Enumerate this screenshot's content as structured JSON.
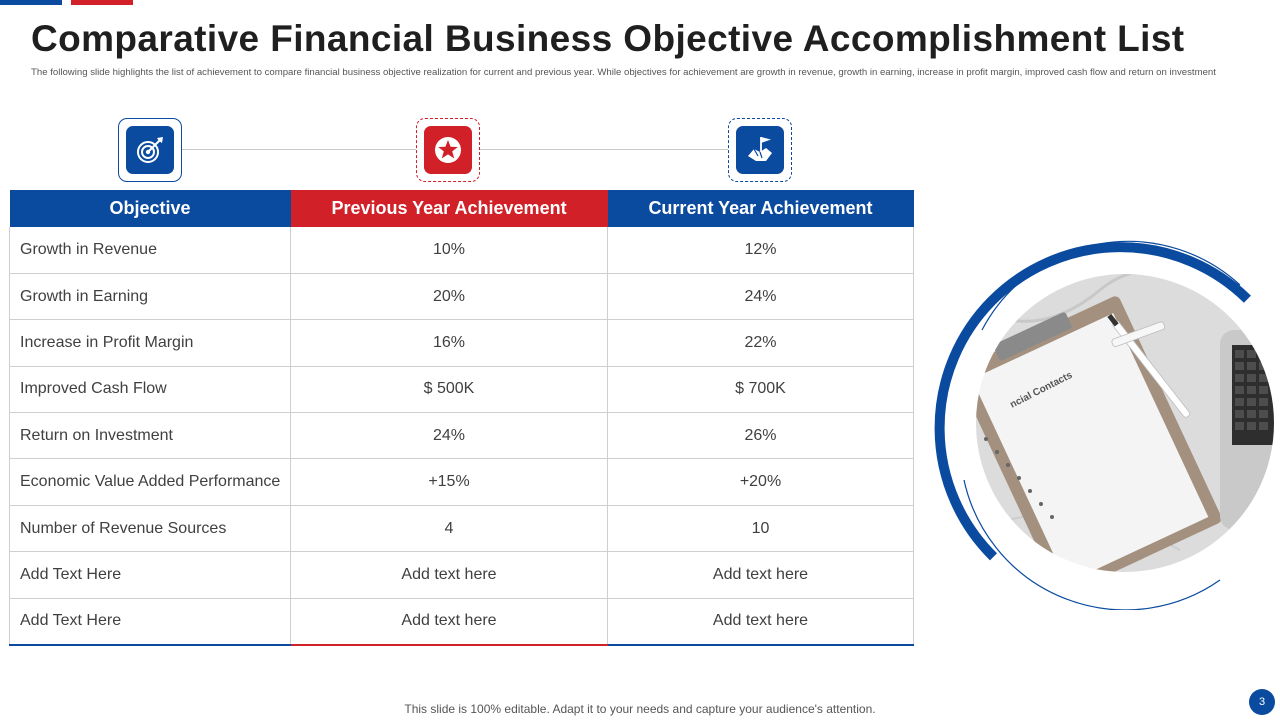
{
  "slide": {
    "title": "Comparative Financial Business Objective Accomplishment List",
    "subtitle": "The following slide highlights the list of achievement to compare financial business objective realization for current and previous year. While objectives for achievement are growth in revenue, growth in earning, increase in profit margin, improved cash flow and return on investment"
  },
  "icons": {
    "first": "target-icon",
    "second": "star-badge-icon",
    "third": "flag-handshake-icon"
  },
  "table": {
    "headers": {
      "objective": "Objective",
      "previous": "Previous Year Achievement",
      "current": "Current Year Achievement"
    },
    "rows": [
      {
        "objective": "Growth  in Revenue",
        "previous": "10%",
        "current": "12%"
      },
      {
        "objective": "Growth  in Earning",
        "previous": "20%",
        "current": "24%"
      },
      {
        "objective": "Increase  in Profit Margin",
        "previous": "16%",
        "current": "22%"
      },
      {
        "objective": "Improved  Cash Flow",
        "previous": "$ 500K",
        "current": "$ 700K"
      },
      {
        "objective": "Return  on Investment",
        "previous": "24%",
        "current": "26%"
      },
      {
        "objective": "Economic Value Added Performance",
        "previous": "+15%",
        "current": "+20%"
      },
      {
        "objective": "Number of Revenue  Sources",
        "previous": "4",
        "current": "10"
      },
      {
        "objective": "Add Text Here",
        "previous": "Add text here",
        "current": "Add text here"
      },
      {
        "objective": "Add Text Here",
        "previous": "Add text here",
        "current": "Add text here"
      }
    ]
  },
  "photo": {
    "clipboard_text": "ncial Contacts"
  },
  "footer": {
    "note": "This slide is 100% editable. Adapt it to your needs and capture your audience's attention.",
    "page_number": "3"
  },
  "colors": {
    "primary_blue": "#0a4a9f",
    "accent_red": "#d12027"
  }
}
